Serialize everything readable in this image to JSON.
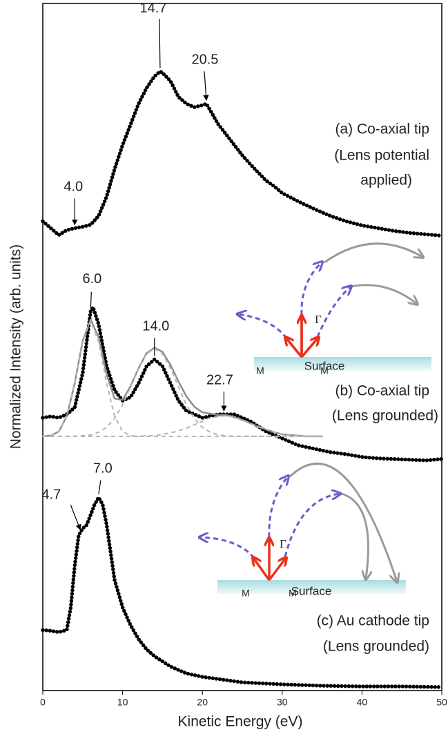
{
  "chart_data": {
    "type": "scatter",
    "x_label": "Kinetic Energy (eV)",
    "y_label": "Normalized Intensity (arb. units)",
    "xlim": [
      0,
      50
    ],
    "xticks": [
      0,
      10,
      20,
      30,
      40,
      50
    ],
    "ylim": [
      0,
      100
    ],
    "series": [
      {
        "style": "dots",
        "color": "#000000",
        "label": [
          "(a) Co-axial tip",
          "(Lens potential",
          "applied)"
        ],
        "x": [
          0,
          1,
          2,
          3,
          4,
          5,
          6,
          7,
          8,
          9,
          10,
          11,
          12,
          13,
          14,
          14.7,
          15,
          16,
          17,
          18,
          19,
          20,
          20.5,
          21,
          22,
          23,
          24,
          25,
          26,
          27,
          28,
          29,
          30,
          32,
          34,
          36,
          38,
          40,
          42,
          44,
          46,
          48,
          50
        ],
        "values": [
          68.3,
          67.3,
          66.3,
          67.0,
          67.3,
          67.5,
          67.8,
          69.1,
          71.9,
          75.9,
          79.4,
          82.4,
          85.4,
          87.7,
          89.4,
          90.1,
          89.9,
          88.7,
          86.4,
          85.4,
          84.9,
          85.2,
          85.4,
          84.4,
          82.4,
          80.9,
          79.4,
          77.9,
          76.6,
          75.4,
          74.2,
          73.4,
          72.4,
          71.2,
          70.1,
          69.1,
          68.3,
          67.7,
          67.3,
          66.9,
          66.6,
          66.4,
          66.2
        ]
      },
      {
        "style": "dots",
        "color": "#000000",
        "label": [
          "(b) Co-axial tip",
          "(Lens grounded)"
        ],
        "x": [
          0,
          1,
          2,
          3,
          4,
          5,
          6,
          6.3,
          7,
          8,
          9,
          10,
          11,
          12,
          13,
          14,
          15,
          16,
          17,
          18,
          20,
          22,
          24,
          26,
          28,
          30,
          32,
          34,
          36,
          38,
          40,
          42,
          44,
          46,
          48,
          50
        ],
        "values": [
          39.7,
          39.9,
          39.7,
          40.2,
          41.2,
          46.2,
          55.3,
          55.8,
          53.3,
          47.2,
          43.7,
          42.2,
          42.7,
          44.7,
          47.2,
          48.2,
          47.2,
          44.7,
          42.2,
          40.7,
          39.7,
          40.2,
          40.2,
          39.2,
          37.7,
          36.7,
          35.7,
          35.2,
          34.7,
          34.4,
          34.0,
          33.8,
          33.7,
          33.6,
          33.5,
          33.7
        ]
      },
      {
        "style": "line",
        "color": "#8c8c8c",
        "x": [
          0,
          1,
          2,
          3,
          4,
          5,
          6,
          7,
          8,
          9,
          10,
          11,
          12,
          13,
          14,
          15,
          16,
          17,
          18,
          19,
          20,
          21,
          22,
          23,
          24,
          25,
          26,
          27,
          28,
          29,
          30,
          31,
          32,
          33,
          34,
          35
        ],
        "values": [
          37.0,
          37.1,
          37.7,
          39.9,
          44.7,
          50.9,
          54.0,
          51.4,
          46.0,
          42.5,
          42.3,
          44.3,
          46.9,
          49.1,
          49.9,
          49.3,
          47.4,
          45.0,
          42.8,
          41.3,
          40.5,
          40.3,
          40.1,
          40.1,
          39.8,
          39.4,
          38.9,
          38.4,
          38.0,
          37.6,
          37.3,
          37.2,
          37.1,
          37.0,
          37.0,
          37.0
        ]
      },
      {
        "style": "dashed",
        "color": "#b4b4b4",
        "x": [
          0,
          1,
          2,
          3,
          4,
          5,
          6,
          7,
          8,
          9,
          10,
          11,
          12,
          13,
          14,
          15,
          16,
          17,
          18,
          19,
          20,
          21,
          22,
          23,
          24,
          25,
          26,
          27,
          28,
          29,
          30,
          31,
          32,
          33,
          34,
          35
        ],
        "values": [
          37.0,
          37.1,
          37.7,
          39.9,
          44.7,
          50.8,
          53.8,
          50.8,
          44.7,
          39.9,
          37.7,
          37.1,
          37.0,
          37.0,
          37.0,
          37.0,
          37.0,
          37.0,
          37.0,
          37.0,
          37.0,
          37.0,
          37.0,
          37.0,
          37.0,
          37.0,
          37.0,
          37.0,
          37.0,
          37.0,
          37.0,
          37.0,
          37.0,
          37.0,
          37.0,
          37.0
        ]
      },
      {
        "style": "dashed",
        "color": "#b4b4b4",
        "x": [
          0,
          1,
          2,
          3,
          4,
          5,
          6,
          7,
          8,
          9,
          10,
          11,
          12,
          13,
          14,
          15,
          16,
          17,
          18,
          19,
          20,
          21,
          22,
          23,
          24,
          25,
          26,
          27,
          28,
          29,
          30,
          31,
          32,
          33,
          34,
          35
        ],
        "values": [
          37.0,
          37.0,
          37.0,
          37.0,
          37.0,
          37.1,
          37.2,
          37.6,
          38.3,
          39.6,
          41.6,
          44.2,
          46.9,
          49.0,
          49.8,
          49.0,
          46.9,
          44.2,
          41.6,
          39.6,
          38.3,
          37.6,
          37.2,
          37.1,
          37.0,
          37.0,
          37.0,
          37.0,
          37.0,
          37.0,
          37.0,
          37.0,
          37.0,
          37.0,
          37.0,
          37.0
        ]
      },
      {
        "style": "dashed",
        "color": "#b4b4b4",
        "x": [
          0,
          1,
          2,
          3,
          4,
          5,
          6,
          7,
          8,
          9,
          10,
          11,
          12,
          13,
          14,
          15,
          16,
          17,
          18,
          19,
          20,
          21,
          22,
          23,
          24,
          25,
          26,
          27,
          28,
          29,
          30,
          31,
          32,
          33,
          34,
          35
        ],
        "values": [
          37.0,
          37.0,
          37.0,
          37.0,
          37.0,
          37.0,
          37.0,
          37.0,
          37.0,
          37.0,
          37.0,
          37.0,
          37.0,
          37.1,
          37.1,
          37.3,
          37.5,
          37.8,
          38.2,
          38.7,
          39.2,
          39.7,
          39.9,
          40.0,
          39.8,
          39.4,
          38.9,
          38.4,
          38.0,
          37.6,
          37.3,
          37.2,
          37.1,
          37.0,
          37.0,
          37.0
        ]
      },
      {
        "style": "dots",
        "color": "#000000",
        "label": [
          "(c) Au cathode tip",
          "(Lens grounded)"
        ],
        "x": [
          0,
          1,
          2,
          3,
          3.5,
          4,
          4.5,
          5,
          5.5,
          6,
          6.5,
          7,
          7.5,
          8,
          8.5,
          9,
          10,
          11,
          12,
          13,
          14,
          16,
          18,
          20,
          25,
          30,
          35,
          40,
          45,
          50
        ],
        "values": [
          8.8,
          8.7,
          8.5,
          8.8,
          12.1,
          18.1,
          22.6,
          23.6,
          24.1,
          25.6,
          27.1,
          28.1,
          27.1,
          24.1,
          20.1,
          16.1,
          12.1,
          9.5,
          7.5,
          6.0,
          5.0,
          3.5,
          2.5,
          2.0,
          1.2,
          0.9,
          0.7,
          0.6,
          0.6,
          0.5
        ]
      }
    ],
    "annotations": [
      {
        "text": "14.7",
        "x": 14.7,
        "y": 90.1
      },
      {
        "text": "20.5",
        "x": 20.5,
        "y": 85.4
      },
      {
        "text": "4.0",
        "x": 4.0,
        "y": 67.3
      },
      {
        "text": "6.0",
        "x": 6.0,
        "y": 55.3
      },
      {
        "text": "14.0",
        "x": 14.0,
        "y": 48.2
      },
      {
        "text": "22.7",
        "x": 22.7,
        "y": 40.2
      },
      {
        "text": "4.7",
        "x": 4.7,
        "y": 22.9
      },
      {
        "text": "7.0",
        "x": 7.0,
        "y": 28.1
      }
    ]
  },
  "diagrams": [
    {
      "gamma": "Γ",
      "m_left": "M",
      "m_right": "M",
      "surface": "Surface"
    },
    {
      "gamma": "Γ",
      "m_left": "M",
      "m_right": "M",
      "surface": "Surface"
    }
  ]
}
